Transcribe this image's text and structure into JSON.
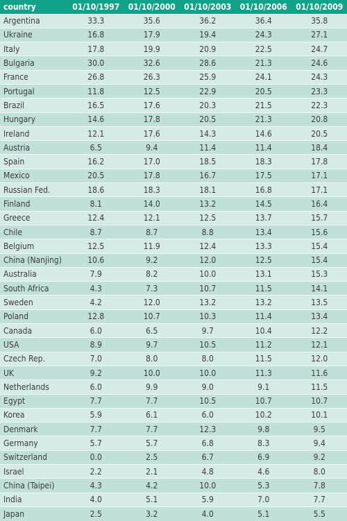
{
  "chart_data": {
    "type": "table",
    "columns": [
      "country",
      "01/10/1997",
      "01/10/2000",
      "01/10/2003",
      "01/10/2006",
      "01/10/2009"
    ],
    "rows": [
      [
        "Argentina",
        "33.3",
        "35.6",
        "36.2",
        "36.4",
        "35.8"
      ],
      [
        "Ukraine",
        "16.8",
        "17.9",
        "19.4",
        "24.3",
        "27.1"
      ],
      [
        "Italy",
        "17.8",
        "19.9",
        "20.9",
        "22.5",
        "24.7"
      ],
      [
        "Bulgaria",
        "30.0",
        "32.6",
        "28.6",
        "21.3",
        "24.6"
      ],
      [
        "France",
        "26.8",
        "26.3",
        "25.9",
        "24.1",
        "24.3"
      ],
      [
        "Portugal",
        "11.8",
        "12.5",
        "22.9",
        "20.5",
        "23.3"
      ],
      [
        "Brazil",
        "16.5",
        "17.6",
        "20.3",
        "21.5",
        "22.3"
      ],
      [
        "Hungary",
        "14.6",
        "17.8",
        "20.5",
        "21.3",
        "20.8"
      ],
      [
        "Ireland",
        "12.1",
        "17.6",
        "14.3",
        "14.6",
        "20.5"
      ],
      [
        "Austria",
        "6.5",
        "9.4",
        "11.4",
        "11.4",
        "18.4"
      ],
      [
        "Spain",
        "16.2",
        "17.0",
        "18.5",
        "18.3",
        "17.8"
      ],
      [
        "Mexico",
        "20.5",
        "17.8",
        "16.7",
        "17.5",
        "17.1"
      ],
      [
        "Russian Fed.",
        "18.6",
        "18.3",
        "18.1",
        "16.8",
        "17.1"
      ],
      [
        "Finland",
        "8.1",
        "14.0",
        "13.2",
        "14.5",
        "16.4"
      ],
      [
        "Greece",
        "12.4",
        "12.1",
        "12.5",
        "13.7",
        "15.7"
      ],
      [
        "Chile",
        "8.7",
        "8.7",
        "8.8",
        "13.4",
        "15.6"
      ],
      [
        "Belgium",
        "12.5",
        "11.9",
        "12.4",
        "13.3",
        "15.4"
      ],
      [
        "China (Nanjing)",
        "10.6",
        "9.2",
        "12.0",
        "12.5",
        "15.4"
      ],
      [
        "Australia",
        "7.9",
        "8.2",
        "10.0",
        "13.1",
        "15.3"
      ],
      [
        "South Africa",
        "4.3",
        "7.3",
        "10.7",
        "11.5",
        "14.1"
      ],
      [
        "Sweden",
        "4.2",
        "12.0",
        "13.2",
        "13.2",
        "13.5"
      ],
      [
        "Poland",
        "12.8",
        "10.7",
        "10.3",
        "11.4",
        "13.4"
      ],
      [
        "Canada",
        "6.0",
        "6.5",
        "9.7",
        "10.4",
        "12.2"
      ],
      [
        "USA",
        "8.9",
        "9.7",
        "10.5",
        "11.2",
        "12.1"
      ],
      [
        "Czech Rep.",
        "7.0",
        "8.0",
        "8.0",
        "11.5",
        "12.0"
      ],
      [
        "UK",
        "9.2",
        "10.0",
        "10.0",
        "11.3",
        "11.6"
      ],
      [
        "Netherlands",
        "6.0",
        "9.9",
        "9.0",
        "9.1",
        "11.5"
      ],
      [
        "Egypt",
        "7.7",
        "7.7",
        "10.5",
        "10.7",
        "10.7"
      ],
      [
        "Korea",
        "5.9",
        "6.1",
        "6.0",
        "10.2",
        "10.1"
      ],
      [
        "Denmark",
        "7.7",
        "7.7",
        "12.3",
        "9.8",
        "9.5"
      ],
      [
        "Germany",
        "5.7",
        "5.7",
        "6.8",
        "8.3",
        "9.4"
      ],
      [
        "Switzerland",
        "0.0",
        "2.5",
        "6.7",
        "6.9",
        "9.2"
      ],
      [
        "Israel",
        "2.2",
        "2.1",
        "4.8",
        "4.6",
        "8.0"
      ],
      [
        "China (Taipei)",
        "4.3",
        "4.2",
        "10.0",
        "5.3",
        "7.8"
      ],
      [
        "India",
        "4.0",
        "5.1",
        "5.9",
        "7.0",
        "7.7"
      ],
      [
        "Japan",
        "2.5",
        "3.2",
        "4.0",
        "5.1",
        "5.5"
      ]
    ]
  },
  "colors": {
    "header_bg": "#11a38a",
    "row_odd": "#d6ebe7",
    "row_even": "#c2e0da",
    "text": "#3b3b3b"
  }
}
